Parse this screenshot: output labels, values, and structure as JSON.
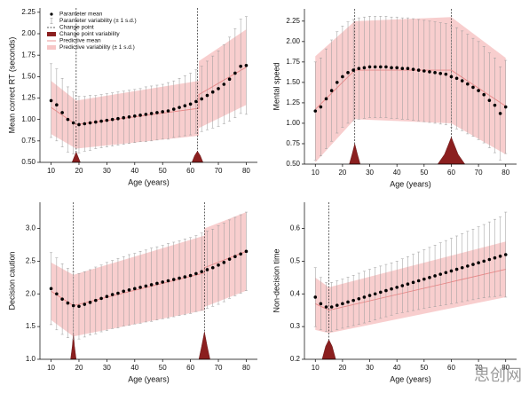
{
  "legend": {
    "items": [
      "Parameter mean",
      "Parameter variability (± 1 s.d.)",
      "Change point",
      "Change point variability",
      "Predictive mean",
      "Predictive variability (± 1 s.d.)"
    ]
  },
  "watermark": "思创网",
  "chart_data": [
    {
      "type": "scatter",
      "x_label": "Age (years)",
      "y_label": "Mean correct RT (seconds)",
      "xlim": [
        6,
        84
      ],
      "ylim": [
        0.5,
        2.3
      ],
      "xticks": [
        10,
        20,
        30,
        40,
        50,
        60,
        70,
        80
      ],
      "yticks": [
        {
          "value": 0.5,
          "label": "0.50"
        },
        {
          "value": 0.75,
          "label": "0.75"
        },
        {
          "value": 1,
          "label": "1.00"
        },
        {
          "value": 1.25,
          "label": "1.25"
        },
        {
          "value": 1.5,
          "label": "1.50"
        },
        {
          "value": 1.75,
          "label": "1.75"
        },
        {
          "value": 2,
          "label": "2.00"
        },
        {
          "value": 2.25,
          "label": "2.25"
        }
      ],
      "x": [
        10,
        12,
        14,
        16,
        18,
        20,
        22,
        24,
        26,
        28,
        30,
        32,
        34,
        36,
        38,
        40,
        42,
        44,
        46,
        48,
        50,
        52,
        54,
        56,
        58,
        60,
        62,
        64,
        66,
        68,
        70,
        72,
        74,
        76,
        78,
        80
      ],
      "values": [
        1.22,
        1.17,
        1.08,
        1.0,
        0.96,
        0.94,
        0.95,
        0.96,
        0.97,
        0.98,
        0.99,
        1.0,
        1.01,
        1.02,
        1.03,
        1.04,
        1.05,
        1.06,
        1.07,
        1.08,
        1.09,
        1.1,
        1.12,
        1.14,
        1.16,
        1.18,
        1.21,
        1.24,
        1.28,
        1.32,
        1.36,
        1.41,
        1.47,
        1.54,
        1.62,
        1.63
      ],
      "errors": [
        0.43,
        0.42,
        0.4,
        0.38,
        0.36,
        0.33,
        0.32,
        0.32,
        0.31,
        0.31,
        0.31,
        0.31,
        0.31,
        0.31,
        0.31,
        0.31,
        0.31,
        0.32,
        0.32,
        0.32,
        0.32,
        0.33,
        0.33,
        0.34,
        0.35,
        0.36,
        0.37,
        0.38,
        0.4,
        0.42,
        0.44,
        0.46,
        0.49,
        0.52,
        0.55,
        0.57
      ],
      "predictive": {
        "x": [
          10,
          19,
          63,
          63,
          80
        ],
        "mean": [
          1.14,
          0.94,
          1.13,
          1.29,
          1.61
        ],
        "sd": [
          0.31,
          0.28,
          0.32,
          0.39,
          0.44
        ]
      },
      "change_points": [
        {
          "x": 19,
          "density": {
            "x": [
              17.5,
              18.5,
              19,
              19.5,
              20.5
            ],
            "values": [
              0.5,
              0.58,
              0.62,
              0.58,
              0.5
            ]
          }
        },
        {
          "x": 62.5,
          "density": {
            "x": [
              60.5,
              61.5,
              62.5,
              63.5,
              64.5
            ],
            "values": [
              0.5,
              0.58,
              0.63,
              0.58,
              0.5
            ]
          }
        }
      ]
    },
    {
      "type": "scatter",
      "x_label": "Age (years)",
      "y_label": "Mental speed",
      "xlim": [
        6,
        84
      ],
      "ylim": [
        0.5,
        2.4
      ],
      "xticks": [
        10,
        20,
        30,
        40,
        50,
        60,
        70,
        80
      ],
      "yticks": [
        {
          "value": 0.5,
          "label": "0.50"
        },
        {
          "value": 0.75,
          "label": "0.75"
        },
        {
          "value": 1,
          "label": "1.00"
        },
        {
          "value": 1.25,
          "label": "1.25"
        },
        {
          "value": 1.5,
          "label": "1.50"
        },
        {
          "value": 1.75,
          "label": "1.75"
        },
        {
          "value": 2,
          "label": "2.00"
        },
        {
          "value": 2.25,
          "label": "2.25"
        }
      ],
      "x": [
        10,
        12,
        14,
        16,
        18,
        20,
        22,
        24,
        26,
        28,
        30,
        32,
        34,
        36,
        38,
        40,
        42,
        44,
        46,
        48,
        50,
        52,
        54,
        56,
        58,
        60,
        62,
        64,
        66,
        68,
        70,
        72,
        74,
        76,
        78,
        80
      ],
      "values": [
        1.15,
        1.2,
        1.3,
        1.4,
        1.5,
        1.57,
        1.62,
        1.65,
        1.67,
        1.68,
        1.69,
        1.69,
        1.69,
        1.69,
        1.68,
        1.68,
        1.67,
        1.67,
        1.66,
        1.65,
        1.64,
        1.63,
        1.62,
        1.61,
        1.6,
        1.57,
        1.55,
        1.52,
        1.48,
        1.44,
        1.4,
        1.35,
        1.28,
        1.22,
        1.12,
        1.2
      ],
      "errors": [
        0.6,
        0.6,
        0.61,
        0.62,
        0.62,
        0.62,
        0.62,
        0.62,
        0.62,
        0.62,
        0.62,
        0.62,
        0.62,
        0.62,
        0.62,
        0.62,
        0.62,
        0.62,
        0.62,
        0.62,
        0.62,
        0.62,
        0.62,
        0.62,
        0.62,
        0.62,
        0.62,
        0.61,
        0.61,
        0.6,
        0.6,
        0.59,
        0.58,
        0.58,
        0.57,
        0.57
      ],
      "predictive": {
        "x": [
          10,
          24.5,
          60,
          80
        ],
        "mean": [
          1.17,
          1.65,
          1.65,
          1.21
        ],
        "sd": [
          0.65,
          0.6,
          0.65,
          0.59
        ]
      },
      "change_points": [
        {
          "x": 24.5,
          "density": {
            "x": [
              22.5,
              23.5,
              24.5,
              25.5,
              26.5
            ],
            "values": [
              0.5,
              0.62,
              0.75,
              0.62,
              0.5
            ]
          }
        },
        {
          "x": 60,
          "density": {
            "x": [
              55,
              57.5,
              60,
              62.5,
              65
            ],
            "values": [
              0.5,
              0.62,
              0.83,
              0.62,
              0.5
            ]
          }
        }
      ]
    },
    {
      "type": "scatter",
      "x_label": "Age (years)",
      "y_label": "Decision caution",
      "xlim": [
        6,
        84
      ],
      "ylim": [
        1,
        3.4
      ],
      "xticks": [
        10,
        20,
        30,
        40,
        50,
        60,
        70,
        80
      ],
      "yticks": [
        {
          "value": 1,
          "label": "1.0"
        },
        1.5,
        {
          "value": 2,
          "label": "2.0"
        },
        2.5,
        {
          "value": 3,
          "label": "3.0"
        }
      ],
      "x": [
        10,
        12,
        14,
        16,
        18,
        20,
        22,
        24,
        26,
        28,
        30,
        32,
        34,
        36,
        38,
        40,
        42,
        44,
        46,
        48,
        50,
        52,
        54,
        56,
        58,
        60,
        62,
        64,
        66,
        68,
        70,
        72,
        74,
        76,
        78,
        80
      ],
      "values": [
        2.08,
        2.0,
        1.92,
        1.86,
        1.82,
        1.81,
        1.84,
        1.87,
        1.9,
        1.93,
        1.96,
        1.99,
        2.01,
        2.04,
        2.06,
        2.08,
        2.1,
        2.12,
        2.14,
        2.16,
        2.18,
        2.2,
        2.22,
        2.24,
        2.26,
        2.28,
        2.31,
        2.34,
        2.37,
        2.4,
        2.44,
        2.48,
        2.53,
        2.57,
        2.61,
        2.65
      ],
      "errors": [
        0.55,
        0.55,
        0.54,
        0.53,
        0.52,
        0.5,
        0.5,
        0.5,
        0.51,
        0.51,
        0.52,
        0.52,
        0.53,
        0.53,
        0.54,
        0.54,
        0.55,
        0.55,
        0.56,
        0.56,
        0.56,
        0.57,
        0.57,
        0.57,
        0.58,
        0.58,
        0.58,
        0.59,
        0.59,
        0.59,
        0.6,
        0.6,
        0.6,
        0.6,
        0.6,
        0.6
      ],
      "predictive": {
        "x": [
          10,
          18,
          65,
          65,
          80
        ],
        "mean": [
          2.04,
          1.82,
          2.32,
          2.4,
          2.65
        ],
        "sd": [
          0.44,
          0.47,
          0.57,
          0.6,
          0.6
        ]
      },
      "change_points": [
        {
          "x": 18,
          "density": {
            "x": [
              17,
              17.6,
              18,
              18.4,
              19
            ],
            "values": [
              1,
              1.2,
              1.4,
              1.2,
              1
            ]
          }
        },
        {
          "x": 65,
          "density": {
            "x": [
              63,
              64,
              65,
              66,
              67
            ],
            "values": [
              1,
              1.2,
              1.42,
              1.2,
              1
            ]
          }
        }
      ]
    },
    {
      "type": "scatter",
      "x_label": "Age (years)",
      "y_label": "Non-decision time",
      "xlim": [
        6,
        84
      ],
      "ylim": [
        0.2,
        0.68
      ],
      "xticks": [
        10,
        20,
        30,
        40,
        50,
        60,
        70,
        80
      ],
      "yticks": [
        0.2,
        0.3,
        0.4,
        0.5,
        0.6
      ],
      "x": [
        10,
        12,
        14,
        16,
        18,
        20,
        22,
        24,
        26,
        28,
        30,
        32,
        34,
        36,
        38,
        40,
        42,
        44,
        46,
        48,
        50,
        52,
        54,
        56,
        58,
        60,
        62,
        64,
        66,
        68,
        70,
        72,
        74,
        76,
        78,
        80
      ],
      "values": [
        0.39,
        0.37,
        0.36,
        0.36,
        0.365,
        0.37,
        0.375,
        0.38,
        0.385,
        0.39,
        0.395,
        0.4,
        0.405,
        0.41,
        0.415,
        0.42,
        0.425,
        0.43,
        0.435,
        0.44,
        0.445,
        0.45,
        0.455,
        0.46,
        0.465,
        0.47,
        0.475,
        0.48,
        0.485,
        0.49,
        0.495,
        0.5,
        0.505,
        0.51,
        0.515,
        0.52
      ],
      "errors": [
        0.09,
        0.08,
        0.075,
        0.075,
        0.075,
        0.075,
        0.076,
        0.077,
        0.078,
        0.079,
        0.08,
        0.08,
        0.08,
        0.08,
        0.08,
        0.08,
        0.082,
        0.084,
        0.086,
        0.088,
        0.09,
        0.092,
        0.094,
        0.096,
        0.098,
        0.1,
        0.102,
        0.104,
        0.106,
        0.108,
        0.11,
        0.112,
        0.115,
        0.118,
        0.12,
        0.13
      ],
      "predictive": {
        "x": [
          10,
          15,
          80
        ],
        "mean": [
          0.37,
          0.35,
          0.475
        ],
        "sd": [
          0.08,
          0.07,
          0.085
        ]
      },
      "change_points": [
        {
          "x": 15,
          "density": {
            "x": [
              12.5,
              13.8,
              15,
              16.2,
              17.5
            ],
            "values": [
              0.2,
              0.24,
              0.26,
              0.24,
              0.2
            ]
          }
        }
      ]
    }
  ]
}
